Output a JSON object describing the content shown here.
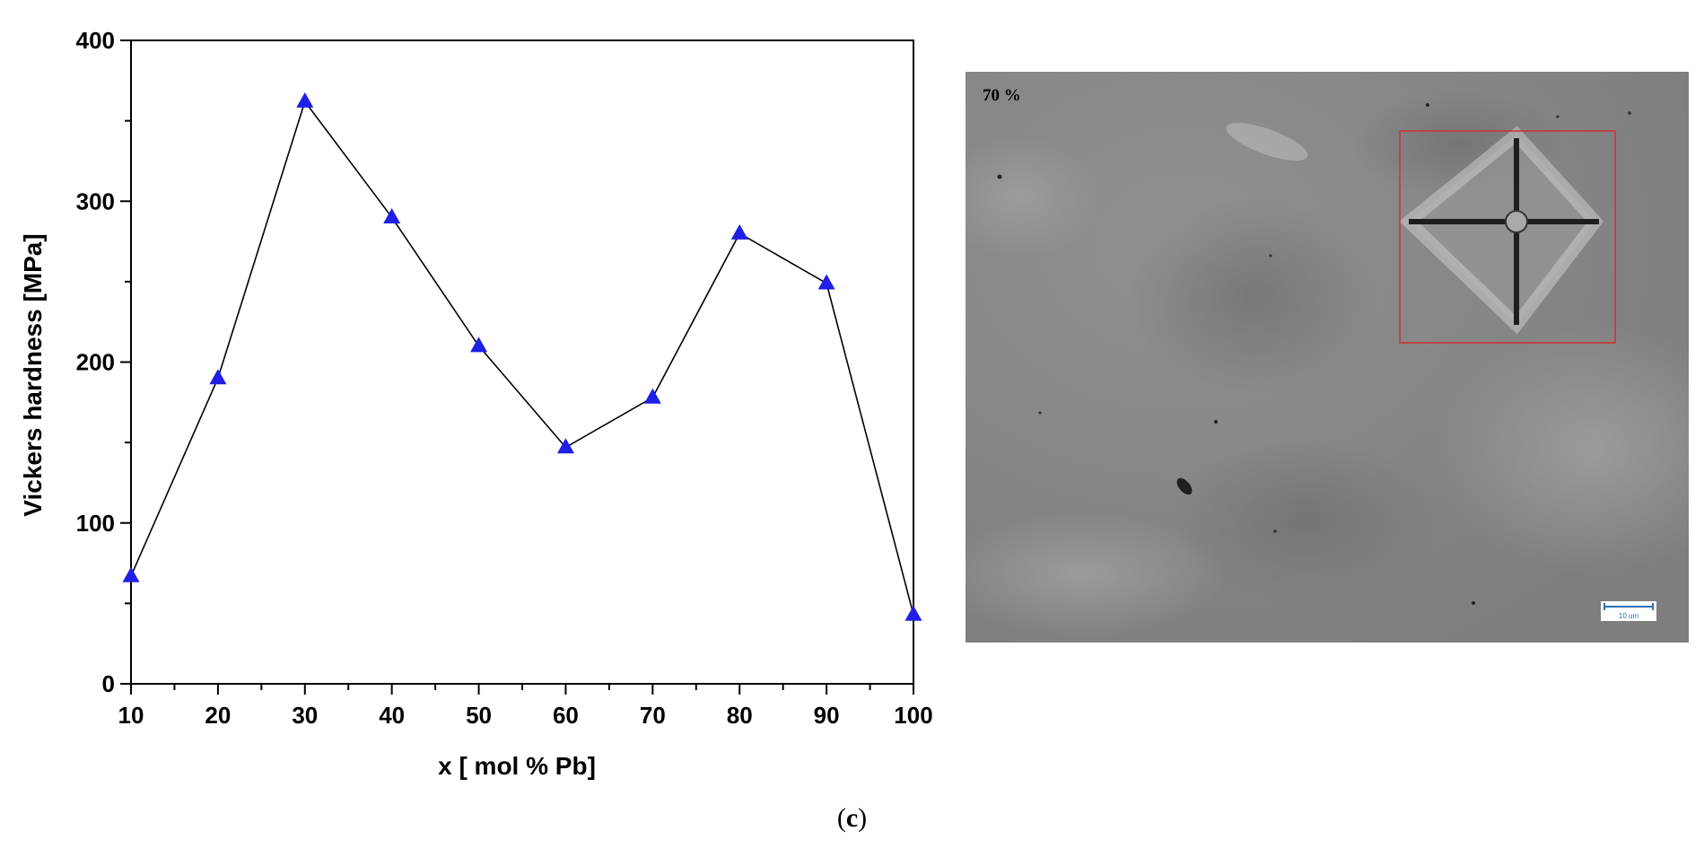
{
  "chart_data": {
    "type": "line",
    "xlabel": "x [ mol % Pb]",
    "ylabel": "Vickers hardness [MPa]",
    "x": [
      10,
      20,
      30,
      40,
      50,
      60,
      70,
      80,
      90,
      100
    ],
    "series": [
      {
        "values": [
          67,
          190,
          362,
          290,
          210,
          147,
          178,
          280,
          249,
          43
        ]
      }
    ],
    "xlim": [
      10,
      100
    ],
    "ylim": [
      0,
      400
    ],
    "xticks": [
      "10",
      "20",
      "30",
      "40",
      "50",
      "60",
      "70",
      "80",
      "90",
      "100"
    ],
    "yticks": [
      "0",
      "100",
      "200",
      "300",
      "400"
    ],
    "marker": "triangle",
    "marker_color": "#1f1fe6",
    "line_color": "#000000",
    "grid": false
  },
  "micrograph": {
    "label": "70 %",
    "scale_bar_label": "10 um",
    "highlight_color": "#d03030"
  },
  "caption": {
    "open": "(",
    "letter": "c",
    "close": ")"
  }
}
